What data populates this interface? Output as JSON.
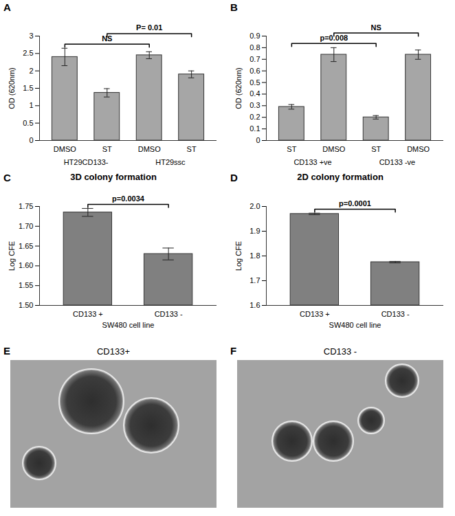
{
  "chart_data": [
    {
      "panel": "A",
      "type": "bar",
      "categories": [
        "DMSO",
        "ST",
        "DMSO",
        "ST"
      ],
      "groups": [
        {
          "name": "HT29CD133-",
          "from": 0,
          "to": 1
        },
        {
          "name": "HT29ssc",
          "from": 2,
          "to": 3
        }
      ],
      "values": [
        2.4,
        1.37,
        2.45,
        1.9
      ],
      "errors": [
        0.25,
        0.12,
        0.1,
        0.1
      ],
      "color": "#a6a6a6",
      "ylim": [
        0,
        3
      ],
      "yticks": [
        0,
        0.5,
        1,
        1.5,
        2,
        2.5,
        3
      ],
      "y_label": "OD (620nm)",
      "grid": false,
      "annotations": [
        {
          "text": "NS",
          "from": 0,
          "to": 2
        },
        {
          "text": "P= 0.01",
          "from": 1,
          "to": 3
        }
      ]
    },
    {
      "panel": "B",
      "type": "bar",
      "categories": [
        "ST",
        "DMSO",
        "ST",
        "DMSO"
      ],
      "groups": [
        {
          "name": "CD133 +ve",
          "from": 0,
          "to": 1
        },
        {
          "name": "CD133 -ve",
          "from": 2,
          "to": 3
        }
      ],
      "values": [
        0.29,
        0.74,
        0.2,
        0.74
      ],
      "errors": [
        0.02,
        0.06,
        0.015,
        0.04
      ],
      "color": "#a6a6a6",
      "ylim": [
        0,
        0.9
      ],
      "yticks": [
        0,
        0.1,
        0.2,
        0.3,
        0.4,
        0.5,
        0.6,
        0.7,
        0.8,
        0.9
      ],
      "y_label": "OD (620nm)",
      "grid": false,
      "annotations": [
        {
          "text": "p=0.008",
          "from": 0,
          "to": 2
        },
        {
          "text": "NS",
          "from": 1,
          "to": 3
        }
      ]
    },
    {
      "panel": "C",
      "type": "bar",
      "title": "3D colony formation",
      "categories": [
        "CD133 +",
        "CD133 -"
      ],
      "values": [
        1.735,
        1.63
      ],
      "errors": [
        0.01,
        0.015
      ],
      "color": "#808080",
      "ylim": [
        1.5,
        1.75
      ],
      "yticks": [
        {
          "value": 1.5,
          "label": "1.50"
        },
        1.55,
        {
          "value": 1.6,
          "label": "1.60"
        },
        1.65,
        {
          "value": 1.7,
          "label": "1.70"
        },
        1.75
      ],
      "y_label": "Log CFE",
      "x_label": "SW480 cell line",
      "grid": false,
      "annotations": [
        {
          "text": "p=0.0034",
          "from": 0,
          "to": 1
        }
      ]
    },
    {
      "panel": "D",
      "type": "bar",
      "title": "2D colony formation",
      "categories": [
        "CD133 +",
        "CD133 -"
      ],
      "values": [
        1.97,
        1.775
      ],
      "errors": [
        0.003,
        0.003
      ],
      "color": "#808080",
      "ylim": [
        1.6,
        2.0
      ],
      "yticks": [
        1.6,
        1.7,
        1.8,
        1.9,
        {
          "value": 2.0,
          "label": "2.0"
        }
      ],
      "y_label": "Log CFE",
      "x_label": "SW480 cell line",
      "grid": false,
      "annotations": [
        {
          "text": "p=0.0001",
          "from": 0,
          "to": 1
        }
      ]
    }
  ],
  "images": [
    {
      "panel": "E",
      "title": "CD133+"
    },
    {
      "panel": "F",
      "title": "CD133 -"
    }
  ]
}
